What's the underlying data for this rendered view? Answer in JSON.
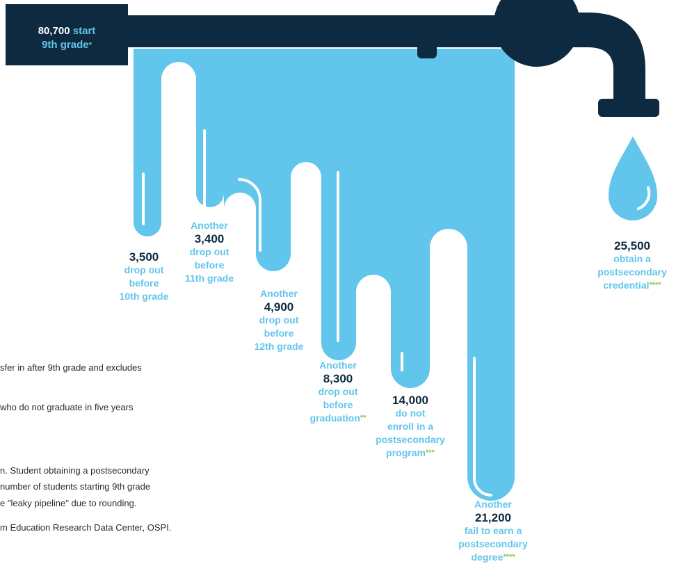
{
  "colors": {
    "pipe": "#0d2a40",
    "water": "#62c5ec",
    "accent_star": "#8cc63f"
  },
  "icons": [
    "faucet-icon",
    "water-drop-icon"
  ],
  "header": {
    "count": "80,700",
    "start_word": "start",
    "grade": "9th grade",
    "star": "*"
  },
  "steps": [
    {
      "prefix": "",
      "value": "3,500",
      "lines": [
        "drop out",
        "before",
        "10th grade"
      ],
      "star": ""
    },
    {
      "prefix": "Another",
      "value": "3,400",
      "lines": [
        "drop out",
        "before",
        "11th grade"
      ],
      "star": ""
    },
    {
      "prefix": "Another",
      "value": "4,900",
      "lines": [
        "drop out",
        "before",
        "12th grade"
      ],
      "star": ""
    },
    {
      "prefix": "Another",
      "value": "8,300",
      "lines": [
        "drop out",
        "before",
        "graduation"
      ],
      "star": "**"
    },
    {
      "prefix": "",
      "value": "14,000",
      "lines": [
        "do not",
        "enroll in a",
        "postsecondary",
        "program"
      ],
      "star": "***"
    },
    {
      "prefix": "Another",
      "value": "21,200",
      "lines": [
        "fail to earn a",
        "postsecondary",
        "degree"
      ],
      "star": "****"
    }
  ],
  "result": {
    "value": "25,500",
    "lines": [
      "obtain a",
      "postsecondary",
      "credential"
    ],
    "star": "****"
  },
  "footnotes": [
    "sfer in after 9th grade and excludes",
    "who do not graduate in five years",
    "n. Student obtaining a postsecondary",
    "number of students starting 9th grade",
    "e \"leaky pipeline\" due to rounding.",
    "m Education Research Data Center, OSPI."
  ]
}
